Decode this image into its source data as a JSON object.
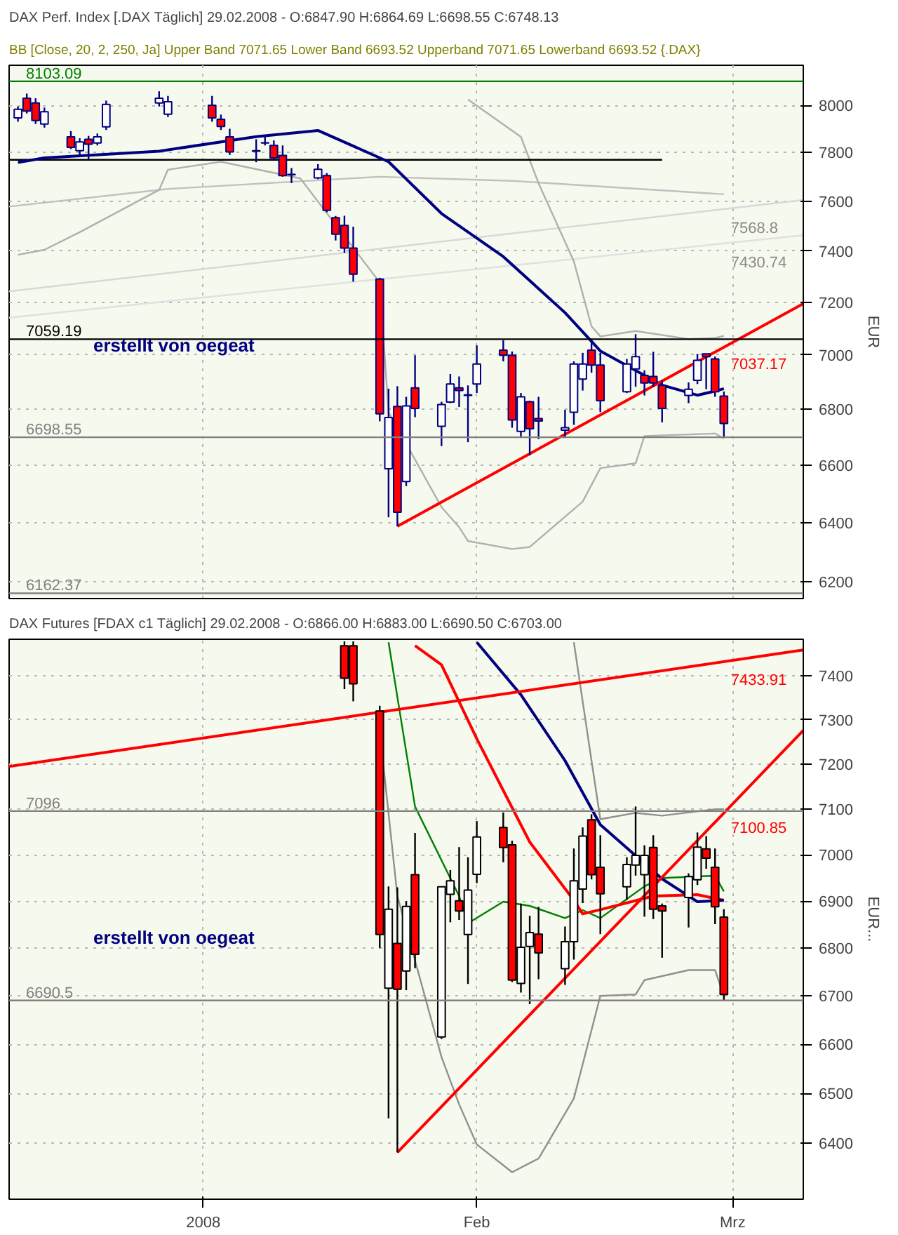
{
  "chart_data": [
    {
      "type": "candlestick",
      "title": "DAX Perf. Index [.DAX  Täglich] 29.02.2008 - O:6847.90 H:6864.69 L:6698.55 C:6748.13",
      "subtitle": "BB [Close, 20, 2, 250, Ja] Upper Band 7071.65 Lower Band 6693.52 Upperband 7071.65 Lowerband 6693.52 {.DAX}",
      "ylabel": "EUR",
      "log": true,
      "grid": true,
      "tick_labels": "y",
      "color": "#000080",
      "x": [
        "2007-12-11",
        "2007-12-12",
        "2007-12-13",
        "2007-12-14",
        "2007-12-17",
        "2007-12-18",
        "2007-12-19",
        "2007-12-20",
        "2007-12-21",
        "2007-12-27",
        "2007-12-28",
        "2008-01-02",
        "2008-01-03",
        "2008-01-04",
        "2008-01-07",
        "2008-01-08",
        "2008-01-09",
        "2008-01-10",
        "2008-01-11",
        "2008-01-14",
        "2008-01-15",
        "2008-01-16",
        "2008-01-17",
        "2008-01-18",
        "2008-01-21",
        "2008-01-22",
        "2008-01-23",
        "2008-01-24",
        "2008-01-25",
        "2008-01-28",
        "2008-01-29",
        "2008-01-30",
        "2008-01-31",
        "2008-02-01",
        "2008-02-04",
        "2008-02-05",
        "2008-02-06",
        "2008-02-07",
        "2008-02-08",
        "2008-02-11",
        "2008-02-12",
        "2008-02-13",
        "2008-02-14",
        "2008-02-15",
        "2008-02-18",
        "2008-02-19",
        "2008-02-20",
        "2008-02-21",
        "2008-02-22",
        "2008-02-25",
        "2008-02-26",
        "2008-02-27",
        "2008-02-28",
        "2008-02-29"
      ],
      "ohlc": [
        [
          7946,
          7995,
          7930,
          7983
        ],
        [
          8030,
          8050,
          7965,
          7975
        ],
        [
          8010,
          8030,
          7920,
          7935
        ],
        [
          7920,
          7990,
          7905,
          7972
        ],
        [
          7866,
          7890,
          7815,
          7822
        ],
        [
          7808,
          7860,
          7787,
          7845
        ],
        [
          7856,
          7870,
          7773,
          7835
        ],
        [
          7840,
          7880,
          7830,
          7866
        ],
        [
          7908,
          8020,
          7895,
          8004
        ],
        [
          8010,
          8060,
          7995,
          8030
        ],
        [
          7962,
          8040,
          7950,
          8015
        ],
        [
          8000,
          8040,
          7930,
          7946
        ],
        [
          7940,
          7960,
          7895,
          7910
        ],
        [
          7866,
          7900,
          7790,
          7803
        ],
        [
          7808,
          7856,
          7760,
          7806
        ],
        [
          7841,
          7866,
          7830,
          7840
        ],
        [
          7830,
          7851,
          7773,
          7778
        ],
        [
          7788,
          7830,
          7700,
          7705
        ],
        [
          7710,
          7736,
          7674,
          7708
        ],
        [
          7695,
          7752,
          7690,
          7731
        ],
        [
          7705,
          7715,
          7555,
          7563
        ],
        [
          7533,
          7540,
          7442,
          7467
        ],
        [
          7502,
          7541,
          7393,
          7412
        ],
        [
          7412,
          7497,
          7280,
          7309
        ],
        [
          7290,
          7295,
          6756,
          6783
        ],
        [
          6587,
          6875,
          6418,
          6770
        ],
        [
          6810,
          6884,
          6387,
          6435
        ],
        [
          6542,
          6845,
          6526,
          6812
        ],
        [
          6878,
          6999,
          6771,
          6803
        ],
        [
          6738,
          6827,
          6667,
          6817
        ],
        [
          6826,
          6929,
          6822,
          6892
        ],
        [
          6878,
          6920,
          6808,
          6868
        ],
        [
          6850,
          6887,
          6681,
          6852
        ],
        [
          6892,
          7036,
          6859,
          6966
        ],
        [
          7018,
          7055,
          6976,
          6999
        ],
        [
          6999,
          7013,
          6733,
          6761
        ],
        [
          6720,
          6859,
          6696,
          6845
        ],
        [
          6827,
          6831,
          6634,
          6729
        ],
        [
          6766,
          6845,
          6692,
          6757
        ],
        [
          6724,
          6798,
          6696,
          6733
        ],
        [
          6789,
          6976,
          6743,
          6966
        ],
        [
          6910,
          7008,
          6868,
          6966
        ],
        [
          7018,
          7055,
          6934,
          6962
        ],
        [
          6962,
          7008,
          6789,
          6831
        ],
        [
          6864,
          6985,
          6859,
          6966
        ],
        [
          6948,
          7078,
          6882,
          6994
        ],
        [
          6924,
          6943,
          6850,
          6896
        ],
        [
          6920,
          7012,
          6882,
          6896
        ],
        [
          6887,
          6906,
          6752,
          6803
        ],
        [
          6850,
          6898,
          6822,
          6873
        ],
        [
          6906,
          7004,
          6892,
          6980
        ],
        [
          7004,
          7004,
          6873,
          6994
        ],
        [
          6985,
          6994,
          6845,
          6864
        ],
        [
          6847.9,
          6864.69,
          6698.55,
          6748.13
        ]
      ],
      "colors": [
        "#ffffff",
        "#ff0000",
        "#ff0000",
        "#ffffff",
        "#ff0000",
        "#ffffff",
        "#ff0000",
        "#ffffff",
        "#ffffff",
        "#ffffff",
        "#ffffff",
        "#ff0000",
        "#ff0000",
        "#ff0000",
        "#ff0000",
        "#ff0000",
        "#ff0000",
        "#ff0000",
        "#ff0000",
        "#ffffff",
        "#ff0000",
        "#ff0000",
        "#ff0000",
        "#ff0000",
        "#ff0000",
        "#ffffff",
        "#ff0000",
        "#ffffff",
        "#ff0000",
        "#ffffff",
        "#ffffff",
        "#ff0000",
        "#ffffff",
        "#ffffff",
        "#ff0000",
        "#ff0000",
        "#ffffff",
        "#ff0000",
        "#ff0000",
        "#ffffff",
        "#ffffff",
        "#ffffff",
        "#ff0000",
        "#ff0000",
        "#ffffff",
        "#ffffff",
        "#ff0000",
        "#ff0000",
        "#ff0000",
        "#ffffff",
        "#ffffff",
        "#ff0000",
        "#ff0000",
        "#ff0000"
      ],
      "series": [
        {
          "type": "line",
          "color": "#c0c0c0",
          "x": [
            "2007-12-10",
            "2007-12-28",
            "2008-01-21",
            "2008-02-05",
            "2008-02-29"
          ],
          "values": [
            7578,
            7650,
            7700,
            7683,
            7628
          ]
        },
        {
          "type": "line",
          "color": "#d8d8d8",
          "x": [
            "2007-12-10",
            "2008-03-09"
          ],
          "values": [
            7242,
            7605
          ]
        },
        {
          "type": "line",
          "color": "#e0e0e0",
          "x": [
            "2007-12-10",
            "2008-03-09"
          ],
          "values": [
            7141,
            7463
          ]
        },
        {
          "type": "line",
          "color": "#b0b0b0",
          "x": [
            "2008-01-31",
            "2008-02-06",
            "2008-02-08",
            "2008-02-12",
            "2008-02-14",
            "2008-02-15",
            "2008-02-19",
            "2008-02-25",
            "2008-02-28",
            "2008-02-29"
          ],
          "values": [
            8025,
            7866,
            7673,
            7359,
            7108,
            7070,
            7090,
            7060,
            7064,
            7071.65
          ]
        },
        {
          "type": "line",
          "color": "#b0b0b0",
          "x": [
            "2007-12-11",
            "2007-12-14",
            "2007-12-18",
            "2007-12-27",
            "2007-12-28",
            "2008-01-03",
            "2008-01-12",
            "2008-01-21",
            "2008-01-22",
            "2008-01-28",
            "2008-01-30",
            "2008-01-31",
            "2008-02-05",
            "2008-02-07",
            "2008-02-13",
            "2008-02-15",
            "2008-02-19",
            "2008-02-20",
            "2008-02-28",
            "2008-02-29"
          ],
          "values": [
            7385,
            7405,
            7475,
            7646,
            7729,
            7762,
            7693,
            7277,
            6789,
            6453,
            6384,
            6337,
            6310,
            6317,
            6472,
            6589,
            6606,
            6703,
            6712,
            6693.52
          ]
        },
        {
          "type": "line",
          "color": "#000000",
          "x": [
            "2007-12-10",
            "2008-02-22"
          ],
          "values": [
            7770,
            7770
          ]
        },
        {
          "type": "line",
          "color": "#000080",
          "x": [
            "2007-12-11",
            "2007-12-14",
            "2007-12-27",
            "2008-01-07",
            "2008-01-14",
            "2008-01-22",
            "2008-01-28",
            "2008-02-04",
            "2008-02-11",
            "2008-02-15",
            "2008-02-22",
            "2008-02-26",
            "2008-02-28",
            "2008-02-29"
          ],
          "values": [
            7759,
            7778,
            7806,
            7867,
            7893,
            7762,
            7550,
            7378,
            7160,
            7015,
            6888,
            6851,
            6866,
            6875
          ]
        },
        {
          "type": "line",
          "color": "#ff0000",
          "x": [
            "2008-01-23",
            "2008-03-09"
          ],
          "values": [
            6387,
            7195
          ]
        }
      ],
      "ref_lines": [
        {
          "axis": "y",
          "value": 8103.09,
          "label": "8103.09",
          "color": "#008000"
        },
        {
          "axis": "y",
          "value": 7059.19,
          "label": "7059.19",
          "color": "#000000"
        },
        {
          "axis": "y",
          "value": 6698.55,
          "label": "6698.55",
          "color": "#808080"
        },
        {
          "axis": "y",
          "value": 6162.37,
          "label": "6162.37",
          "color": "#808080"
        }
      ],
      "annotations": [
        "erstellt von oegeat",
        {
          "text": "7568.8",
          "x": "2008-02-29",
          "y": 7568.8
        },
        {
          "text": "7430.74",
          "x": "2008-02-29",
          "y": 7430.74
        },
        {
          "text": "7037.17",
          "x": "2008-02-29",
          "y": 7037.17
        }
      ],
      "xlim": [
        "2007-12-10",
        "2008-03-09"
      ],
      "xticks": [
        {
          "value": "2008-01-01",
          "label": null
        },
        {
          "value": "2008-02-01",
          "label": null
        },
        {
          "value": "2008-03-01",
          "label": null
        }
      ],
      "ylim": [
        6145,
        8173
      ],
      "yticks": [
        6200,
        6400,
        6600,
        6800,
        7000,
        7200,
        7400,
        7600,
        7800,
        8000
      ]
    },
    {
      "type": "candlestick",
      "title": "DAX Futures [FDAX c1  Täglich] 29.02.2008 - O:6866.00 H:6883.00 L:6690.50 C:6703.00",
      "ylabel": "EUR...",
      "log": true,
      "grid": true,
      "color": "#000000",
      "x": [
        "2008-01-17",
        "2008-01-18",
        "2008-01-21",
        "2008-01-22",
        "2008-01-23",
        "2008-01-24",
        "2008-01-25",
        "2008-01-28",
        "2008-01-29",
        "2008-01-30",
        "2008-01-31",
        "2008-02-01",
        "2008-02-04",
        "2008-02-05",
        "2008-02-06",
        "2008-02-07",
        "2008-02-08",
        "2008-02-11",
        "2008-02-12",
        "2008-02-13",
        "2008-02-14",
        "2008-02-15",
        "2008-02-18",
        "2008-02-19",
        "2008-02-20",
        "2008-02-21",
        "2008-02-22",
        "2008-02-25",
        "2008-02-26",
        "2008-02-27",
        "2008-02-28",
        "2008-02-29"
      ],
      "ohlc": [
        [
          7470,
          7480,
          7370,
          7395
        ],
        [
          7470,
          7480,
          7342,
          7382
        ],
        [
          7320,
          7332,
          6800,
          6829
        ],
        [
          6716,
          6932,
          6450,
          6883
        ],
        [
          6810,
          6930,
          6382,
          6714
        ],
        [
          6752,
          6900,
          6712,
          6889
        ],
        [
          6957,
          7048,
          6758,
          6787
        ],
        [
          6615,
          6931,
          6611,
          6931
        ],
        [
          6915,
          6967,
          6855,
          6944
        ],
        [
          6901,
          7017,
          6860,
          6879
        ],
        [
          6829,
          6995,
          6725,
          6924
        ],
        [
          6958,
          7074,
          6939,
          7039
        ],
        [
          7060,
          7093,
          6984,
          7016
        ],
        [
          7022,
          7031,
          6729,
          6733
        ],
        [
          6726,
          6895,
          6707,
          6802
        ],
        [
          6804,
          6869,
          6683,
          6833
        ],
        [
          6830,
          6888,
          6735,
          6790
        ],
        [
          6757,
          6846,
          6723,
          6814
        ],
        [
          6814,
          7014,
          6776,
          6944
        ],
        [
          6926,
          7060,
          6896,
          7041
        ],
        [
          7077,
          7089,
          6947,
          6957
        ],
        [
          6973,
          7043,
          6830,
          6916
        ],
        [
          6931,
          6995,
          6903,
          6979
        ],
        [
          6978,
          7106,
          6955,
          6999
        ],
        [
          6957,
          7021,
          6867,
          6999
        ],
        [
          7016,
          7043,
          6862,
          6883
        ],
        [
          6890,
          6895,
          6780,
          6879
        ],
        [
          6908,
          6960,
          6844,
          6953
        ],
        [
          6946,
          7049,
          6935,
          7017
        ],
        [
          7013,
          7041,
          6970,
          6993
        ],
        [
          6973,
          7014,
          6851,
          6888
        ],
        [
          6866,
          6883,
          6690.5,
          6703
        ]
      ],
      "colors": [
        "#ff0000",
        "#ff0000",
        "#ff0000",
        "#ffffff",
        "#ff0000",
        "#ffffff",
        "#ff0000",
        "#ffffff",
        "#ffffff",
        "#ff0000",
        "#ffffff",
        "#ffffff",
        "#ff0000",
        "#ff0000",
        "#ffffff",
        "#ffffff",
        "#ff0000",
        "#ffffff",
        "#ffffff",
        "#ffffff",
        "#ff0000",
        "#ff0000",
        "#ffffff",
        "#ffffff",
        "#ffffff",
        "#ff0000",
        "#ff0000",
        "#ffffff",
        "#ffffff",
        "#ff0000",
        "#ff0000",
        "#ff0000"
      ],
      "series": [
        {
          "type": "line",
          "color": "#909090",
          "x": [
            "2008-02-12",
            "2008-02-14",
            "2008-02-15",
            "2008-02-19",
            "2008-02-22",
            "2008-02-28",
            "2008-02-29"
          ],
          "values": [
            7478,
            7208,
            7078,
            7092,
            7086,
            7100,
            7100
          ]
        },
        {
          "type": "line",
          "color": "#909090",
          "x": [
            "2008-01-21",
            "2008-01-23",
            "2008-01-28",
            "2008-01-30",
            "2008-02-01",
            "2008-02-05",
            "2008-02-08",
            "2008-02-12",
            "2008-02-15",
            "2008-02-19",
            "2008-02-20",
            "2008-02-25",
            "2008-02-28",
            "2008-02-29"
          ],
          "values": [
            7275,
            6911,
            6574,
            6478,
            6398,
            6343,
            6370,
            6490,
            6700,
            6703,
            6733,
            6754,
            6754,
            6700
          ]
        },
        {
          "type": "line",
          "color": "#008000",
          "x": [
            "2008-01-22",
            "2008-01-25",
            "2008-01-30",
            "2008-01-31",
            "2008-02-04",
            "2008-02-07",
            "2008-02-11",
            "2008-02-13",
            "2008-02-15",
            "2008-02-20",
            "2008-02-22",
            "2008-02-28",
            "2008-02-29"
          ],
          "values": [
            7478,
            7106,
            6911,
            6853,
            6899,
            6890,
            6864,
            6881,
            6864,
            6932,
            6950,
            6955,
            6921
          ]
        },
        {
          "type": "line",
          "color": "#ff0000",
          "x": [
            "2008-01-25",
            "2008-01-28",
            "2008-02-01",
            "2008-02-07",
            "2008-02-12",
            "2008-02-13",
            "2008-02-15",
            "2008-02-21",
            "2008-02-26",
            "2008-02-29"
          ],
          "values": [
            7470,
            7426,
            7257,
            7028,
            6902,
            6873,
            6882,
            6911,
            6914,
            6902
          ]
        },
        {
          "type": "line",
          "color": "#000080",
          "x": [
            "2008-02-01",
            "2008-02-06",
            "2008-02-11",
            "2008-02-15",
            "2008-02-22",
            "2008-02-26",
            "2008-02-29"
          ],
          "values": [
            7478,
            7357,
            7208,
            7066,
            6948,
            6899,
            6902
          ]
        },
        {
          "type": "line",
          "color": "#ff0000",
          "x": [
            "2007-12-10",
            "2008-03-09"
          ],
          "values": [
            7195,
            7460
          ]
        },
        {
          "type": "line",
          "color": "#ff0000",
          "x": [
            "2008-01-23",
            "2008-03-09"
          ],
          "values": [
            6382,
            7276
          ]
        }
      ],
      "ref_lines": [
        {
          "axis": "y",
          "value": 7096,
          "label": "7096",
          "color": "#808080"
        },
        {
          "axis": "y",
          "value": 6690.5,
          "label": "6690.5",
          "color": "#808080"
        }
      ],
      "annotations": [
        "erstellt von oegeat",
        {
          "text": "7433.91",
          "x": "2008-02-29",
          "y": 7433.91
        },
        {
          "text": "7100.85",
          "x": "2008-02-29",
          "y": 7100.85
        }
      ],
      "xlim": [
        "2007-12-10",
        "2008-03-09"
      ],
      "xticks": [
        {
          "value": "2008-01-01",
          "label": "2008"
        },
        {
          "value": "2008-02-01",
          "label": "Feb"
        },
        {
          "value": "2008-03-01",
          "label": "Mrz"
        }
      ],
      "ylim": [
        6290,
        7485
      ],
      "yticks": [
        6400,
        6500,
        6600,
        6700,
        6800,
        6900,
        7000,
        7100,
        7200,
        7300,
        7400
      ]
    }
  ]
}
